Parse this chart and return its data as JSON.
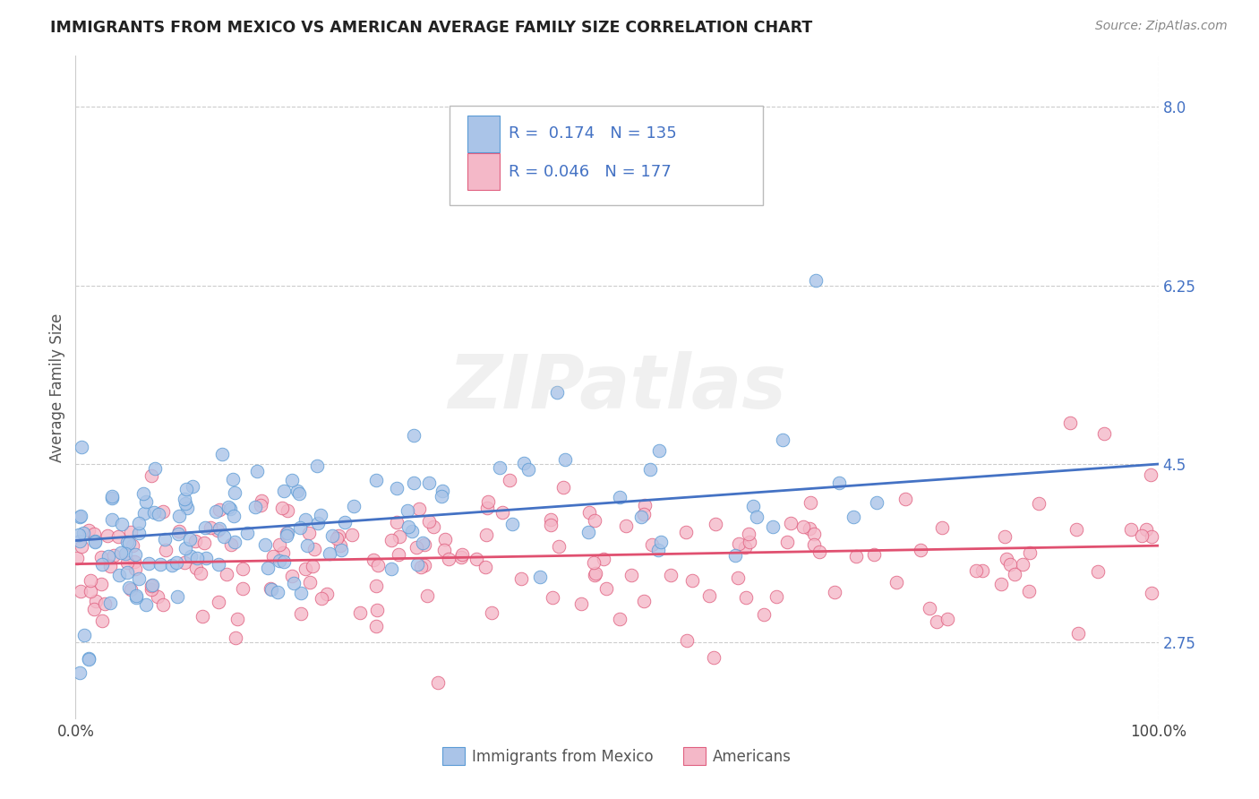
{
  "title": "IMMIGRANTS FROM MEXICO VS AMERICAN AVERAGE FAMILY SIZE CORRELATION CHART",
  "source": "Source: ZipAtlas.com",
  "ylabel": "Average Family Size",
  "yticks": [
    2.75,
    4.5,
    6.25,
    8.0
  ],
  "ylim": [
    2.0,
    8.5
  ],
  "xlim": [
    0.0,
    1.0
  ],
  "blue_fill": "#aac4e8",
  "blue_edge": "#5b9bd5",
  "pink_fill": "#f4b8c8",
  "pink_edge": "#e06080",
  "blue_line": "#4472c4",
  "pink_line": "#e05070",
  "title_color": "#222222",
  "source_color": "#888888",
  "tick_color": "#4472c4",
  "blue_intercept": 3.75,
  "blue_slope": 0.75,
  "pink_intercept": 3.52,
  "pink_slope": 0.18,
  "legend_R_blue": "0.174",
  "legend_N_blue": "135",
  "legend_R_pink": "0.046",
  "legend_N_pink": "177",
  "legend_label_blue": "Immigrants from Mexico",
  "legend_label_pink": "Americans",
  "watermark": "ZIPatlas"
}
